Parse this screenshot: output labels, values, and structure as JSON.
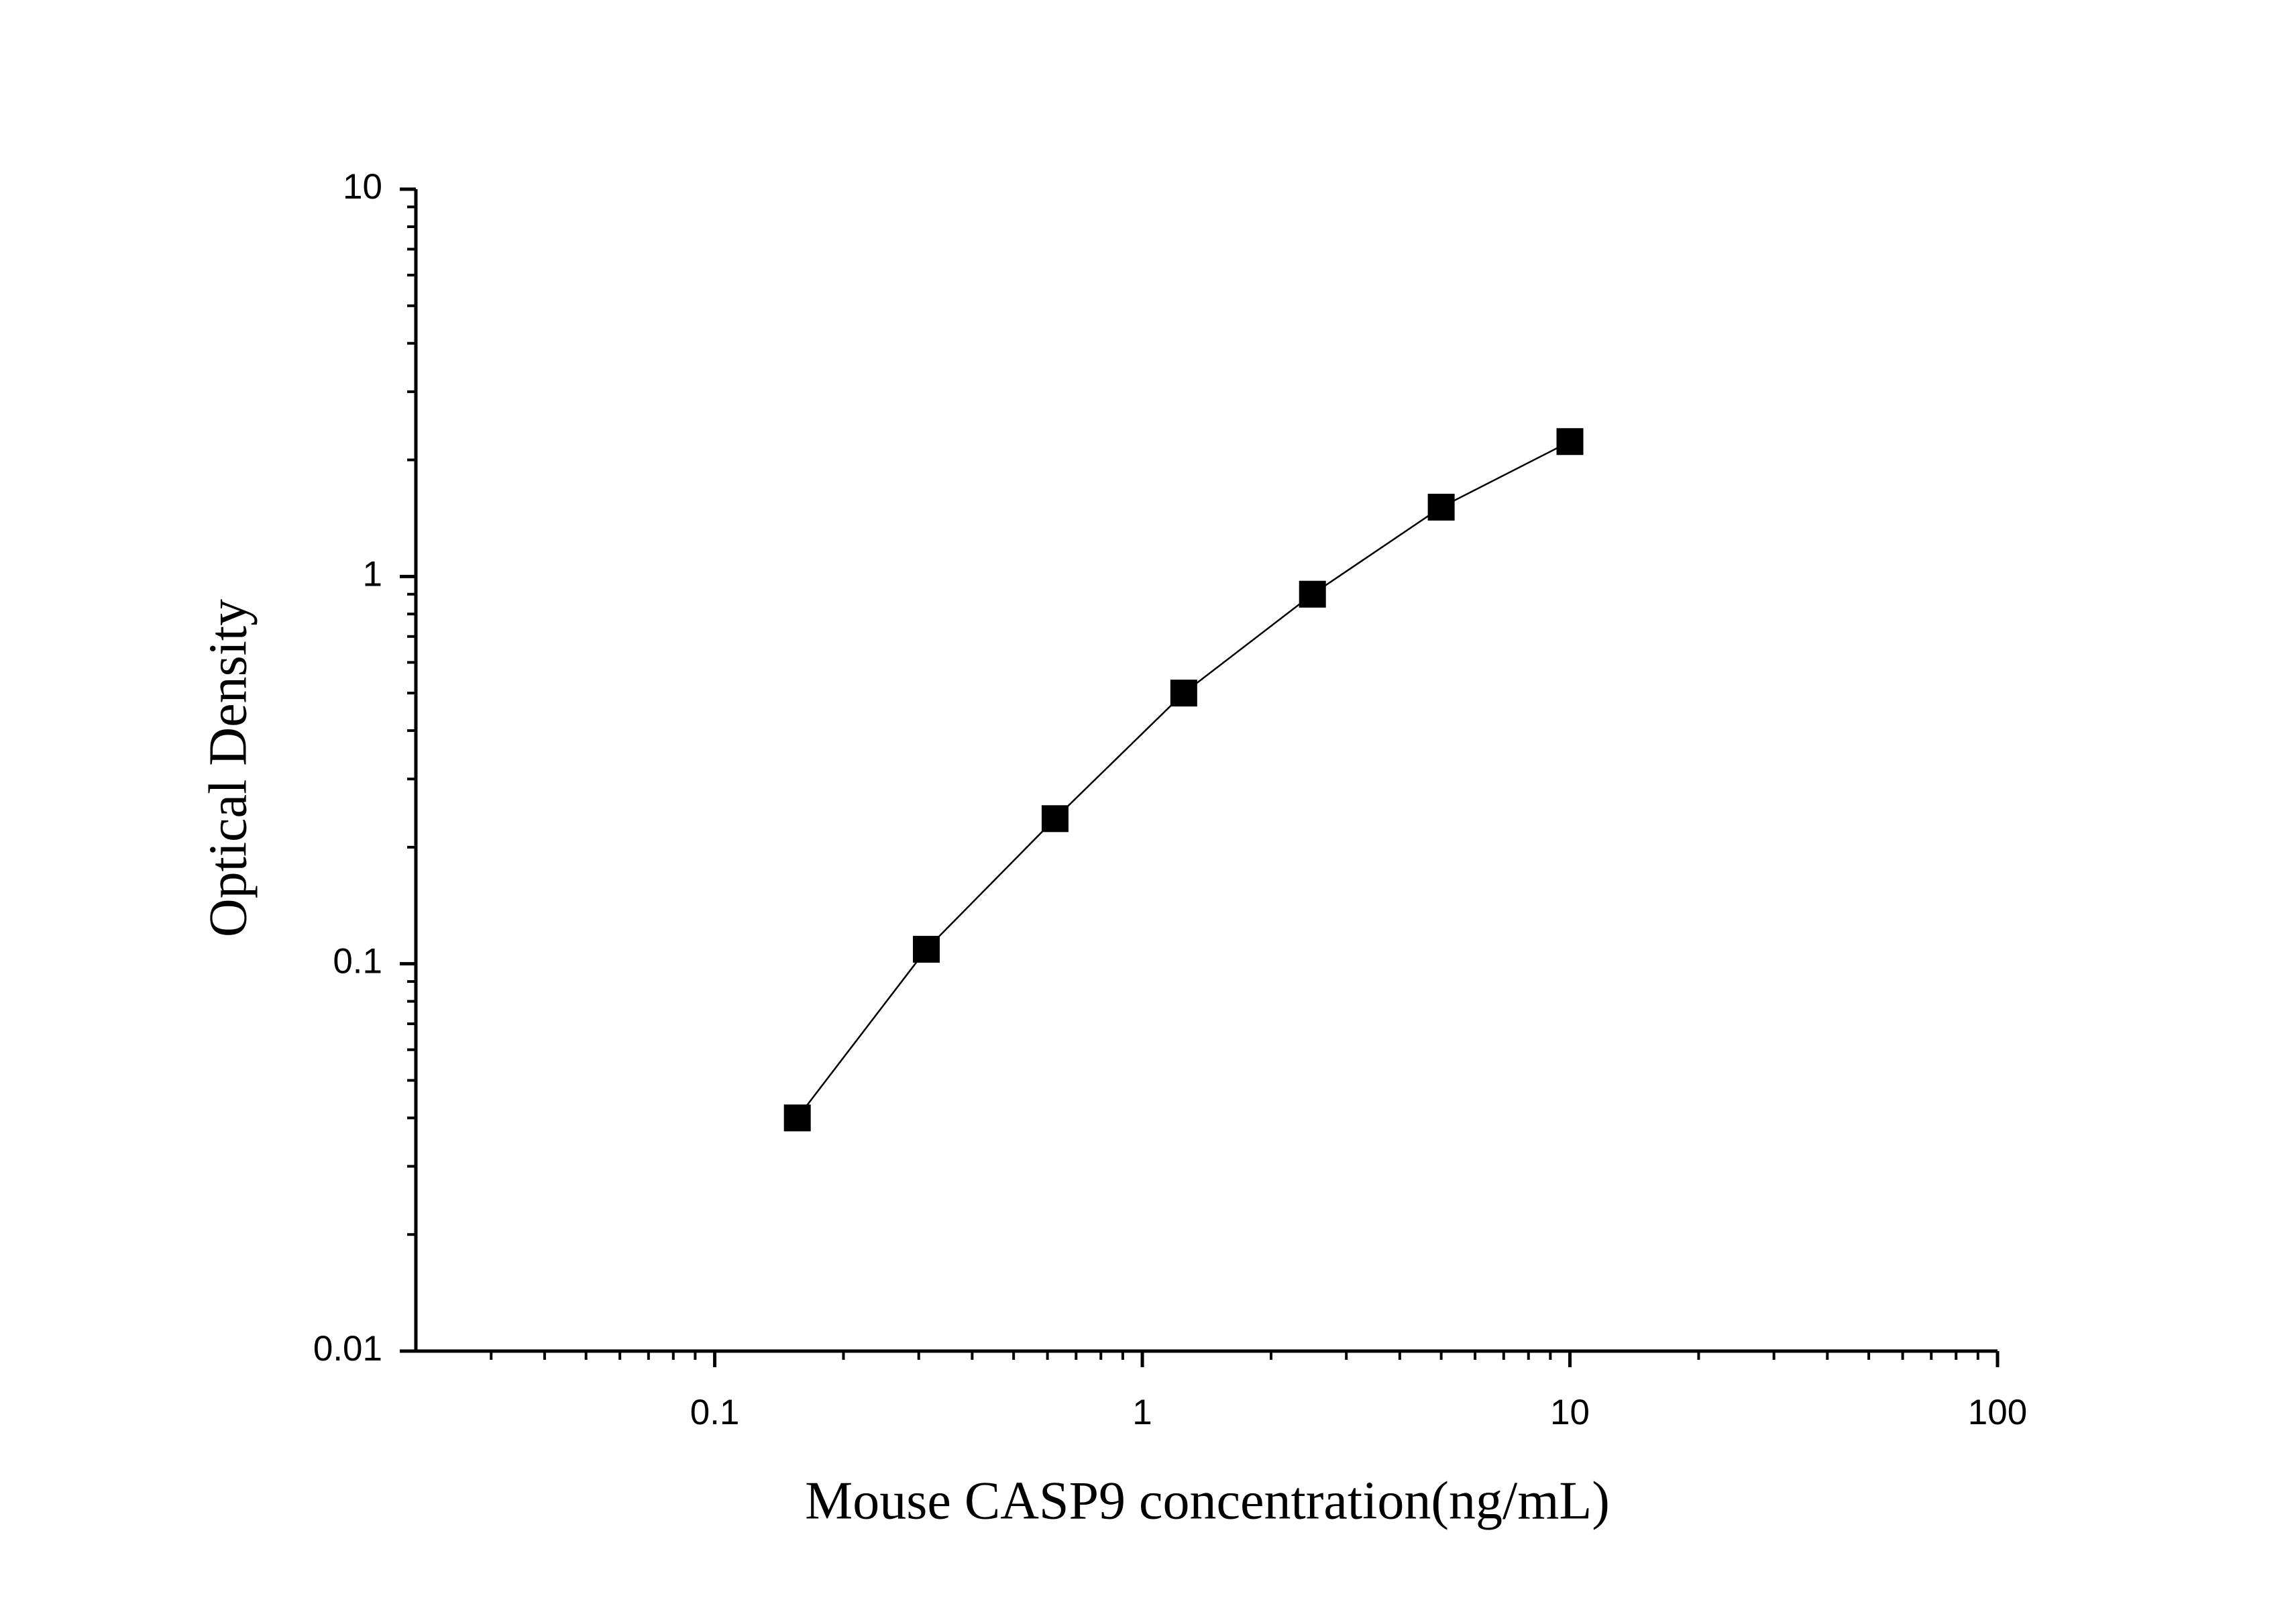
{
  "chart_data": {
    "type": "line",
    "x_label": "Mouse CASP9 concentration(ng/mL)",
    "y_label": "Optical Density",
    "x": [
      0.156,
      0.3125,
      0.625,
      1.25,
      2.5,
      5,
      10
    ],
    "series": [
      {
        "color": "#000000",
        "values": [
          0.04,
          0.109,
          0.237,
          0.5,
          0.9,
          1.51,
          2.23
        ]
      }
    ],
    "xlim": [
      0.02,
      100
    ],
    "xticks": [
      0.1,
      1,
      10,
      100
    ],
    "ylim": [
      0.01,
      10
    ],
    "yticks": [
      0.01,
      0.1,
      1,
      10
    ],
    "log_x": true,
    "log_y": true,
    "minor_ticks": true,
    "marker": "square",
    "grid": false
  }
}
